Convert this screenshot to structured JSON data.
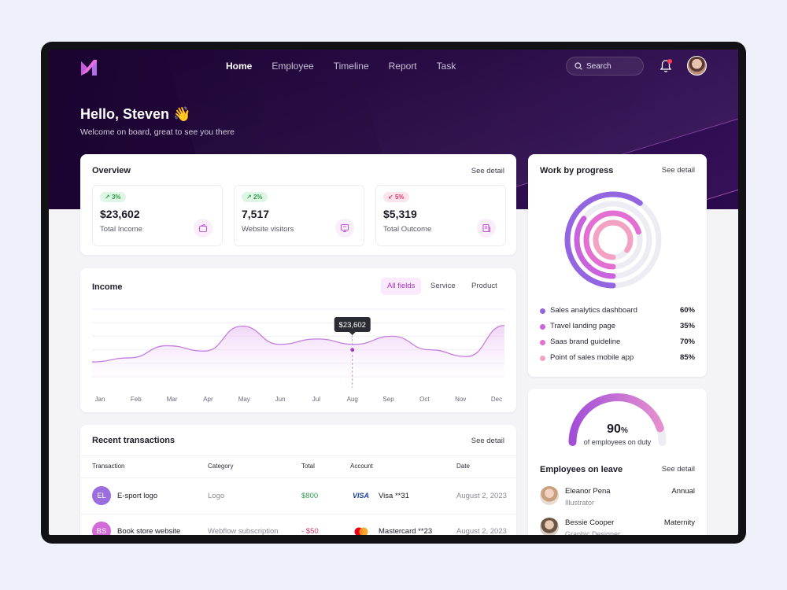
{
  "nav": {
    "items": [
      "Home",
      "Employee",
      "Timeline",
      "Report",
      "Task"
    ],
    "search_label": "Search"
  },
  "greeting": {
    "title": "Hello, Steven 👋",
    "subtitle": "Welcome on board, great to see you there"
  },
  "overview": {
    "title": "Overview",
    "see_detail": "See detail",
    "stats": [
      {
        "change": "3%",
        "direction": "up",
        "value": "$23,602",
        "label": "Total Income",
        "icon": "wallet-icon"
      },
      {
        "change": "2%",
        "direction": "up",
        "value": "7,517",
        "label": "Website visitors",
        "icon": "monitor-icon"
      },
      {
        "change": "5%",
        "direction": "down",
        "value": "$5,319",
        "label": "Total Outcome",
        "icon": "receipt-icon"
      }
    ]
  },
  "income": {
    "title": "Income",
    "tabs": [
      "All fields",
      "Service",
      "Product"
    ],
    "tooltip": "$23,602"
  },
  "chart_data": {
    "type": "area",
    "x": [
      "Jan",
      "Feb",
      "Mar",
      "Apr",
      "May",
      "Jun",
      "Jul",
      "Aug",
      "Sep",
      "Oct",
      "Nov",
      "Dec"
    ],
    "series": [
      {
        "values": [
          22,
          28,
          46,
          38,
          75,
          48,
          56,
          48,
          60,
          40,
          30,
          76
        ]
      }
    ],
    "highlight": {
      "x": "Aug",
      "label": "$23,602"
    },
    "grid": true,
    "color": "#c47ee0"
  },
  "transactions": {
    "title": "Recent transactions",
    "see_detail": "See detail",
    "headers": [
      "Transaction",
      "Category",
      "Total",
      "Account",
      "Date"
    ],
    "rows": [
      {
        "initials": "EL",
        "name": "E-sport logo",
        "category": "Logo",
        "total": "$800",
        "brand": "VISA",
        "account": "Visa **31",
        "date": "August 2, 2023",
        "avatar_color": "#9b6ee0",
        "total_color": "#2f9e4f"
      },
      {
        "initials": "BS",
        "name": "Book store website",
        "category": "Webflow subscription",
        "total": "- $50",
        "brand": "",
        "account": "Mastercard **23",
        "date": "August 2, 2023",
        "avatar_color": "#d26ad8",
        "total_color": "#d7386b"
      }
    ]
  },
  "progress": {
    "title": "Work by progress",
    "see_detail": "See detail",
    "items": [
      {
        "label": "Sales analytics dashboard",
        "pct": "60%",
        "color": "#9465e0",
        "value": 60
      },
      {
        "label": "Travel landing page",
        "pct": "35%",
        "color": "#c963dd",
        "value": 35
      },
      {
        "label": "Saas brand guideline",
        "pct": "70%",
        "color": "#e36fd2",
        "value": 70
      },
      {
        "label": "Point of sales mobile app",
        "pct": "85%",
        "color": "#f3a2c4",
        "value": 85
      }
    ]
  },
  "duty": {
    "value": "90",
    "unit": "%",
    "label": "of employees on duty",
    "level": 0.9
  },
  "leave": {
    "title": "Employees on leave",
    "see_detail": "See detail",
    "people": [
      {
        "name": "Eleanor Pena",
        "role": "Illustrator",
        "type": "Annual"
      },
      {
        "name": "Bessie Cooper",
        "role": "Graphic Designer",
        "type": "Maternity"
      }
    ]
  },
  "colors": {
    "accent": "#a63ac0",
    "hero": "#23073f"
  }
}
